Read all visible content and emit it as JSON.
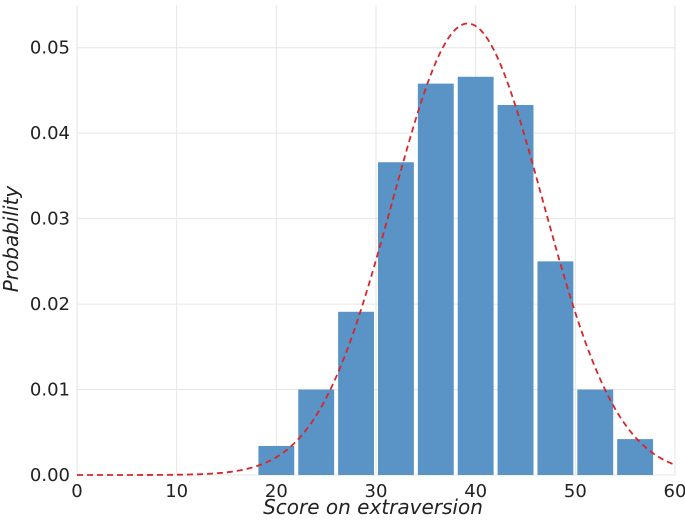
{
  "chart_data": {
    "type": "bar",
    "title": "",
    "xlabel": "Score on extraversion",
    "ylabel": "Probability",
    "xlim": [
      0,
      60
    ],
    "ylim": [
      0,
      0.055
    ],
    "xticks": [
      0,
      10,
      20,
      30,
      40,
      50,
      60
    ],
    "yticks": [
      0.0,
      0.01,
      0.02,
      0.03,
      0.04,
      0.05
    ],
    "xtick_labels": [
      "0",
      "10",
      "20",
      "30",
      "40",
      "50",
      "60"
    ],
    "ytick_labels": [
      "0.00",
      "0.01",
      "0.02",
      "0.03",
      "0.04",
      "0.05"
    ],
    "grid": true,
    "bar_width": 3.6,
    "bars": [
      {
        "x": 20,
        "value": 0.0034
      },
      {
        "x": 24,
        "value": 0.01
      },
      {
        "x": 28,
        "value": 0.0191
      },
      {
        "x": 32,
        "value": 0.0366
      },
      {
        "x": 36,
        "value": 0.0458
      },
      {
        "x": 40,
        "value": 0.0466
      },
      {
        "x": 44,
        "value": 0.0433
      },
      {
        "x": 48,
        "value": 0.025
      },
      {
        "x": 52,
        "value": 0.01
      },
      {
        "x": 56,
        "value": 0.0042
      }
    ],
    "curve": {
      "type": "normal",
      "mean": 39.2,
      "sd": 7.55,
      "x_range": [
        0,
        60
      ],
      "style": "dashed"
    },
    "colors": {
      "background": "#ffffff",
      "grid": "#e6e6e6",
      "bar": "#5a93c5",
      "curve": "#d62728",
      "text": "#222222"
    }
  }
}
